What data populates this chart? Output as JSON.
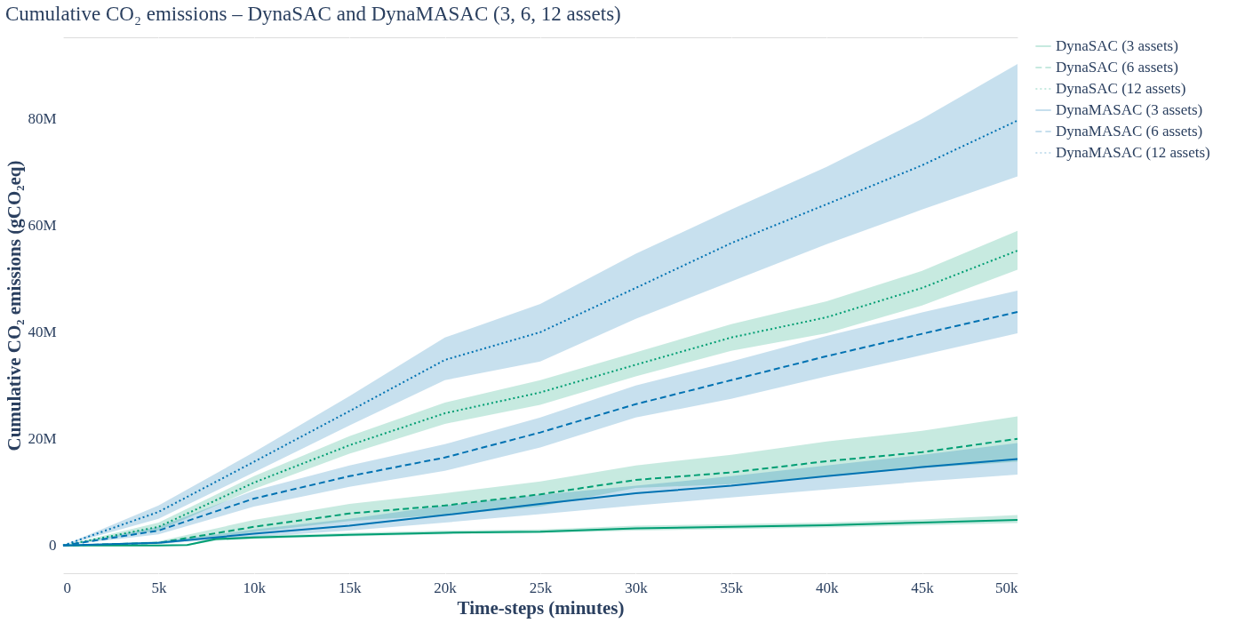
{
  "chart_data": {
    "type": "line",
    "title": "Cumulative CO₂ emissions – DynaSAC and DynaMASAC (3, 6, 12 assets)",
    "xlabel": "Time-steps (minutes)",
    "ylabel": "Cumulative CO₂ emissions (gCO₂eq)",
    "x": [
      0,
      5000,
      10000,
      15000,
      20000,
      25000,
      30000,
      35000,
      40000,
      45000,
      50000
    ],
    "xlim": [
      0,
      50000
    ],
    "xticks": [
      0,
      {
        "value": 5000,
        "label": "5k"
      },
      {
        "value": 10000,
        "label": "10k"
      },
      {
        "value": 15000,
        "label": "15k"
      },
      {
        "value": 20000,
        "label": "20k"
      },
      {
        "value": 25000,
        "label": "25k"
      },
      {
        "value": 30000,
        "label": "30k"
      },
      {
        "value": 35000,
        "label": "35k"
      },
      {
        "value": 40000,
        "label": "40k"
      },
      {
        "value": 45000,
        "label": "45k"
      },
      {
        "value": 50000,
        "label": "50k"
      }
    ],
    "ylim": [
      -5200000.0,
      95300000.0
    ],
    "yticks": [
      0,
      {
        "value": 20000000.0,
        "label": "20M"
      },
      {
        "value": 40000000.0,
        "label": "40M"
      },
      {
        "value": 60000000.0,
        "label": "60M"
      },
      {
        "value": 80000000.0,
        "label": "80M"
      }
    ],
    "grid": true,
    "legend": "right",
    "marker": "none",
    "series": [
      {
        "name": "DynaSAC (3 assets)",
        "color": "#009e73",
        "line_style": "solid",
        "x": [
          0,
          5000,
          6500,
          8000,
          10000,
          15000,
          20000,
          25000,
          30000,
          35000,
          40000,
          45000,
          50000
        ],
        "values": [
          0,
          0,
          100000.0,
          1200000.0,
          1500000.0,
          2000000.0,
          2400000.0,
          2600000.0,
          3200000.0,
          3500000.0,
          3800000.0,
          4300000.0,
          4800000.0
        ],
        "upper": [
          0,
          100000.0,
          200000.0,
          1500000.0,
          1800000.0,
          2400000.0,
          2800000.0,
          3000000.0,
          3700000.0,
          4000000.0,
          4300000.0,
          4900000.0,
          5700000.0
        ],
        "lower": [
          0,
          0,
          0,
          900000.0,
          1200000.0,
          1700000.0,
          2100000.0,
          2300000.0,
          2800000.0,
          3100000.0,
          3400000.0,
          3800000.0,
          4200000.0
        ]
      },
      {
        "name": "DynaSAC (6 assets)",
        "color": "#009e73",
        "line_style": "dashed",
        "values": [
          0,
          500000.0,
          3500000.0,
          6000000.0,
          7500000.0,
          9600000.0,
          12300000.0,
          13700000.0,
          15800000.0,
          17500000.0,
          20000000.0
        ],
        "upper": [
          0,
          800000.0,
          4800000.0,
          7800000.0,
          9800000.0,
          12000000.0,
          15000000.0,
          17000000.0,
          19500000.0,
          21500000.0,
          24200000.0
        ],
        "lower": [
          0,
          200000.0,
          2500000.0,
          4600000.0,
          5700000.0,
          7300000.0,
          10800000.0,
          11500000.0,
          13000000.0,
          14500000.0,
          15700000.0
        ]
      },
      {
        "name": "DynaSAC (12 assets)",
        "color": "#009e73",
        "line_style": "dotted",
        "values": [
          0,
          3500000.0,
          11800000.0,
          18800000.0,
          24800000.0,
          28700000.0,
          33900000.0,
          39000000.0,
          42800000.0,
          48300000.0,
          55300000.0
        ],
        "upper": [
          0,
          4300000.0,
          13000000.0,
          20500000.0,
          26800000.0,
          31000000.0,
          36200000.0,
          41500000.0,
          45800000.0,
          51500000.0,
          59000000.0
        ],
        "lower": [
          0,
          2800000.0,
          10600000.0,
          17200000.0,
          22800000.0,
          26400000.0,
          31700000.0,
          36500000.0,
          39800000.0,
          45000000.0,
          51700000.0
        ]
      },
      {
        "name": "DynaMASAC (3 assets)",
        "color": "#0072b2",
        "line_style": "solid",
        "values": [
          0,
          500000.0,
          2200000.0,
          3700000.0,
          5700000.0,
          7800000.0,
          9800000.0,
          11200000.0,
          13000000.0,
          14700000.0,
          16200000.0
        ],
        "upper": [
          0,
          700000.0,
          3000000.0,
          5000000.0,
          7500000.0,
          9500000.0,
          11200000.0,
          13000000.0,
          15000000.0,
          17000000.0,
          19200000.0
        ],
        "lower": [
          0,
          300000.0,
          1600000.0,
          2800000.0,
          4300000.0,
          5900000.0,
          7500000.0,
          9000000.0,
          10500000.0,
          12000000.0,
          13300000.0
        ]
      },
      {
        "name": "DynaMASAC (6 assets)",
        "color": "#0072b2",
        "line_style": "dashed",
        "values": [
          0,
          2800000.0,
          8800000.0,
          13000000.0,
          16500000.0,
          21200000.0,
          26500000.0,
          31000000.0,
          35500000.0,
          39700000.0,
          43800000.0
        ],
        "upper": [
          0,
          3500000.0,
          10300000.0,
          15000000.0,
          19000000.0,
          24000000.0,
          30000000.0,
          34500000.0,
          39300000.0,
          43700000.0,
          47800000.0
        ],
        "lower": [
          0,
          2100000.0,
          7300000.0,
          11000000.0,
          14000000.0,
          18400000.0,
          24000000.0,
          27500000.0,
          31700000.0,
          35700000.0,
          39800000.0
        ]
      },
      {
        "name": "DynaMASAC (12 assets)",
        "color": "#0072b2",
        "line_style": "dotted",
        "values": [
          0,
          6300000.0,
          15700000.0,
          25200000.0,
          34800000.0,
          40000000.0,
          48300000.0,
          56700000.0,
          64000000.0,
          71300000.0,
          79700000.0
        ],
        "upper": [
          0,
          7500000.0,
          17500000.0,
          28000000.0,
          39000000.0,
          45300000.0,
          54700000.0,
          63000000.0,
          71000000.0,
          80000000.0,
          90300000.0
        ],
        "lower": [
          0,
          5000000.0,
          13700000.0,
          22500000.0,
          31000000.0,
          34500000.0,
          42500000.0,
          49500000.0,
          56500000.0,
          63000000.0,
          69200000.0
        ]
      }
    ]
  }
}
